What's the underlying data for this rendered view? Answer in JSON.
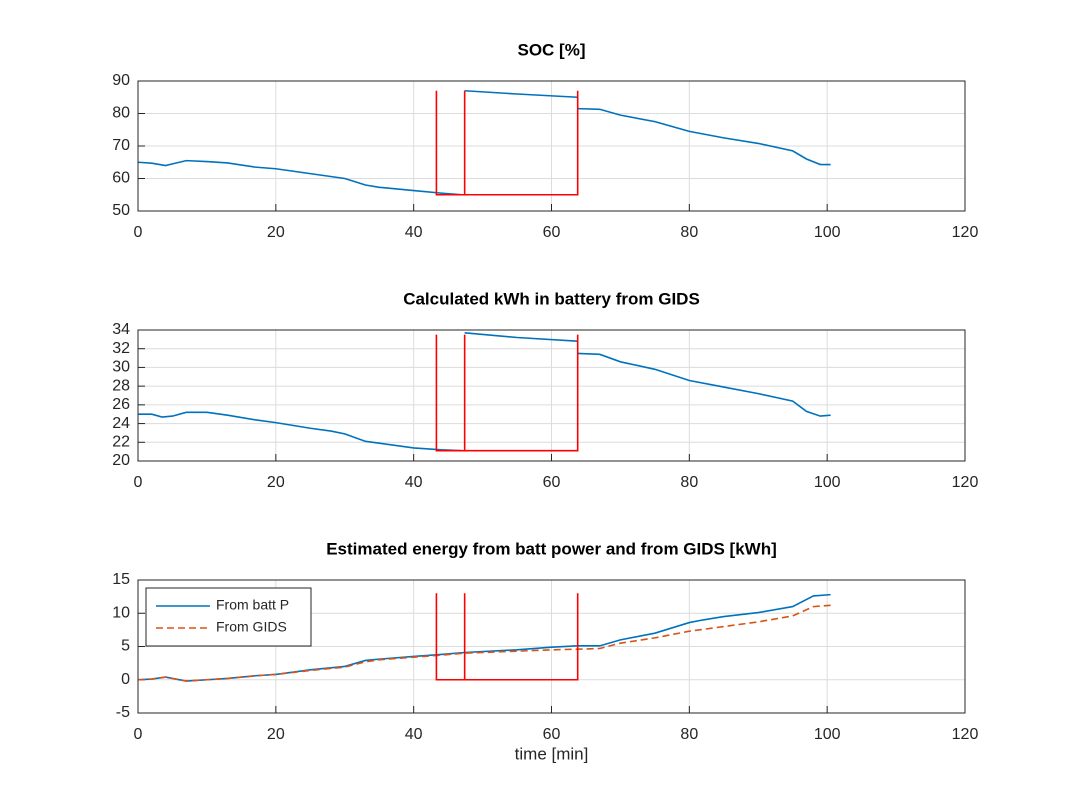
{
  "chart_data": [
    {
      "type": "line",
      "title": "SOC [%]",
      "xlim": [
        0,
        120
      ],
      "xticks": [
        0,
        20,
        40,
        60,
        80,
        100,
        120
      ],
      "ylim": [
        50,
        90
      ],
      "yticks": [
        50,
        60,
        70,
        80,
        90
      ],
      "grid": true,
      "series": [
        {
          "color": "#0072bd",
          "linestyle": "solid",
          "x": [
            0,
            2,
            4,
            5,
            7,
            10,
            13,
            17,
            20,
            25,
            30,
            33,
            35,
            40,
            44,
            47,
            47.4,
            47.4,
            55,
            63.8,
            63.8,
            63.8,
            67,
            70,
            75,
            80,
            85,
            90,
            95,
            97,
            99,
            100.5
          ],
          "values": [
            65,
            64.7,
            64,
            64.5,
            65.5,
            65.2,
            64.8,
            63.5,
            63,
            61.5,
            60,
            58,
            57.3,
            56.3,
            55.5,
            55,
            null,
            87,
            86,
            85,
            null,
            81.5,
            81.3,
            79.5,
            77.5,
            74.5,
            72.5,
            70.8,
            68.5,
            66,
            64.3,
            64.3
          ]
        },
        {
          "color": "#ff0000",
          "linestyle": "solid",
          "x": [
            43.3,
            43.3,
            63.8,
            63.8,
            47.4,
            47.4,
            47.4
          ],
          "values": [
            87,
            55,
            55,
            87,
            null,
            55,
            87
          ]
        }
      ]
    },
    {
      "type": "line",
      "title": "Calculated kWh in battery from GIDS",
      "xlim": [
        0,
        120
      ],
      "xticks": [
        0,
        20,
        40,
        60,
        80,
        100,
        120
      ],
      "ylim": [
        20,
        34
      ],
      "yticks": [
        20,
        22,
        24,
        26,
        28,
        30,
        32,
        34
      ],
      "grid": true,
      "series": [
        {
          "color": "#0072bd",
          "linestyle": "solid",
          "x": [
            0,
            2,
            3.5,
            5,
            7,
            10,
            13,
            17,
            20,
            25,
            28,
            30,
            33,
            35,
            40,
            44,
            47,
            47.4,
            47.4,
            55,
            63.8,
            63.8,
            63.8,
            67,
            70,
            75,
            80,
            85,
            90,
            95,
            97,
            99,
            100.5
          ],
          "values": [
            25,
            25,
            24.7,
            24.8,
            25.2,
            25.2,
            24.9,
            24.4,
            24.1,
            23.5,
            23.2,
            22.9,
            22.1,
            21.9,
            21.4,
            21.2,
            21.1,
            null,
            33.7,
            33.2,
            32.8,
            null,
            31.5,
            31.4,
            30.6,
            29.8,
            28.6,
            27.9,
            27.2,
            26.4,
            25.3,
            24.8,
            24.9
          ]
        },
        {
          "color": "#ff0000",
          "linestyle": "solid",
          "x": [
            43.3,
            43.3,
            63.8,
            63.8,
            47.4,
            47.4,
            47.4
          ],
          "values": [
            33.5,
            21.1,
            21.1,
            33.5,
            null,
            21.1,
            33.5
          ]
        }
      ]
    },
    {
      "type": "line",
      "title": "Estimated energy from batt power and from GIDS [kWh]",
      "xlabel": "time [min]",
      "xlim": [
        0,
        120
      ],
      "xticks": [
        0,
        20,
        40,
        60,
        80,
        100,
        120
      ],
      "ylim": [
        -5,
        15
      ],
      "yticks": [
        -5,
        0,
        5,
        10,
        15
      ],
      "grid": true,
      "legend": "top-left",
      "series": [
        {
          "name": "From batt P",
          "color": "#0072bd",
          "linestyle": "solid",
          "x": [
            0,
            2,
            4,
            5,
            7,
            10,
            13,
            17,
            20,
            25,
            30,
            33,
            35,
            40,
            44,
            47.4,
            55,
            60,
            63.8,
            67,
            70,
            75,
            80,
            82,
            85,
            90,
            95,
            98,
            100.5
          ],
          "values": [
            0,
            0.1,
            0.4,
            0.2,
            -0.2,
            0,
            0.2,
            0.6,
            0.8,
            1.5,
            2,
            2.9,
            3.1,
            3.5,
            3.8,
            4.1,
            4.5,
            4.9,
            5.1,
            5.1,
            6,
            7,
            8.6,
            9,
            9.5,
            10.1,
            11,
            12.6,
            12.8
          ]
        },
        {
          "name": "From GIDS",
          "color": "#d95319",
          "linestyle": "dashed",
          "x": [
            0,
            2,
            4,
            5,
            7,
            10,
            13,
            17,
            20,
            25,
            30,
            33,
            35,
            40,
            44,
            47.4,
            55,
            60,
            63.8,
            67,
            70,
            75,
            80,
            85,
            90,
            95,
            98,
            100.5
          ],
          "values": [
            0,
            0.1,
            0.4,
            0.2,
            -0.2,
            0,
            0.2,
            0.6,
            0.8,
            1.4,
            1.9,
            2.7,
            3,
            3.4,
            3.7,
            4,
            4.3,
            4.5,
            4.6,
            4.7,
            5.5,
            6.3,
            7.3,
            8,
            8.7,
            9.6,
            11,
            11.2
          ]
        },
        {
          "color": "#ff0000",
          "linestyle": "solid",
          "x": [
            43.3,
            43.3,
            63.8,
            63.8,
            47.4,
            47.4,
            47.4
          ],
          "values": [
            13,
            0,
            0,
            13,
            null,
            0,
            13
          ]
        }
      ]
    }
  ]
}
